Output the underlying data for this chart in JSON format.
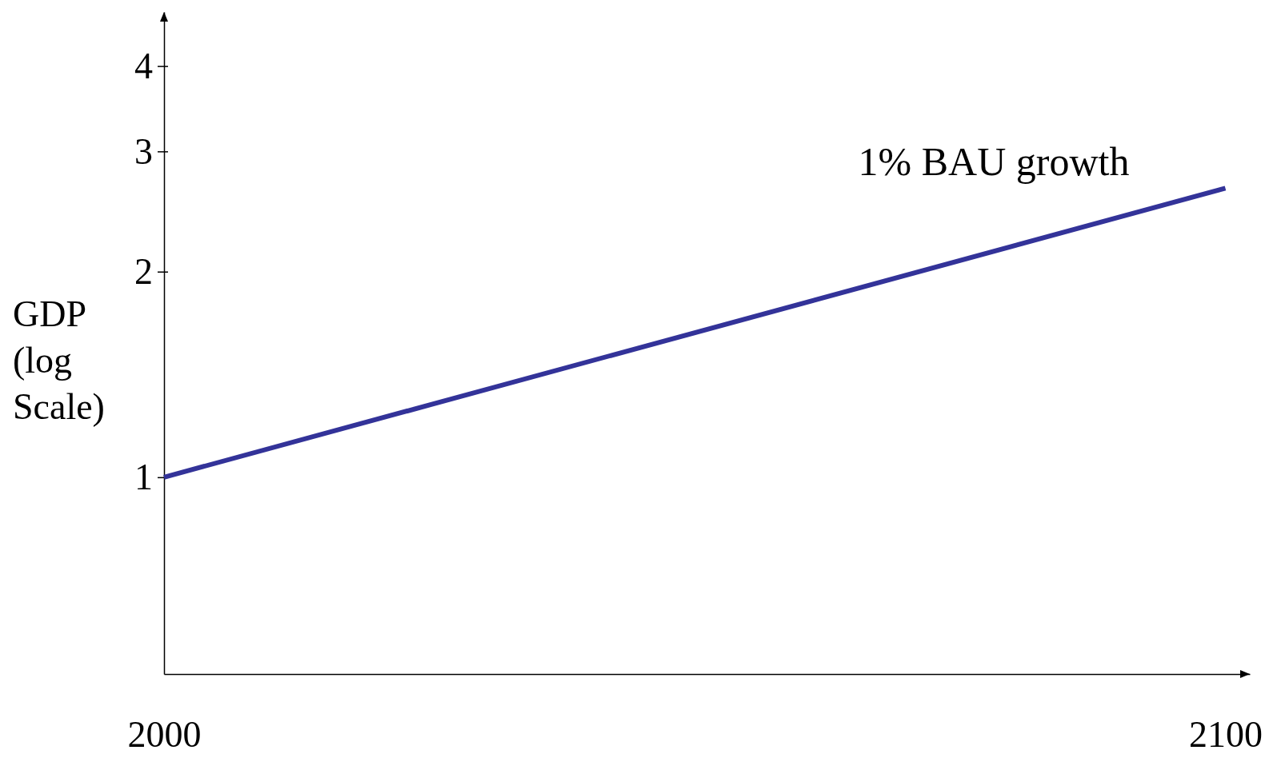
{
  "chart_data": {
    "type": "line",
    "ylabel": "GDP (log Scale)",
    "log": true,
    "x": [
      2000,
      2100
    ],
    "series": [
      {
        "name": "1% BAU growth",
        "color": "#333399",
        "values": [
          1,
          2.65
        ]
      }
    ],
    "xlim": [
      2000,
      2102.3
    ],
    "xticks": [
      2000,
      2100
    ],
    "ylim": [
      0.515,
      4.8
    ],
    "yticks": [
      1,
      2,
      3,
      4
    ]
  }
}
